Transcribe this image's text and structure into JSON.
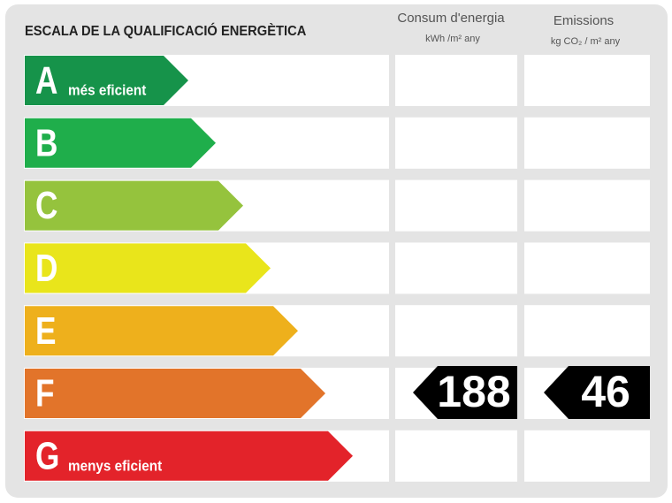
{
  "title": "ESCALA DE LA QUALIFICACIÓ ENERGÈTICA",
  "columns": [
    {
      "title": "Consum d'energia",
      "unit": "kWh /m² any"
    },
    {
      "title": "Emissions",
      "unit": "kg CO₂ / m² any"
    }
  ],
  "ratings": [
    {
      "letter": "A",
      "note": "més eficient",
      "color": "#16934a"
    },
    {
      "letter": "B",
      "color": "#1fae4b"
    },
    {
      "letter": "C",
      "color": "#95c33d"
    },
    {
      "letter": "D",
      "color": "#e9e51b"
    },
    {
      "letter": "E",
      "color": "#eeb01c"
    },
    {
      "letter": "F",
      "color": "#e2742a",
      "consumption": 188,
      "emissions": 46
    },
    {
      "letter": "G",
      "note": "menys eficient",
      "color": "#e3232a"
    }
  ]
}
